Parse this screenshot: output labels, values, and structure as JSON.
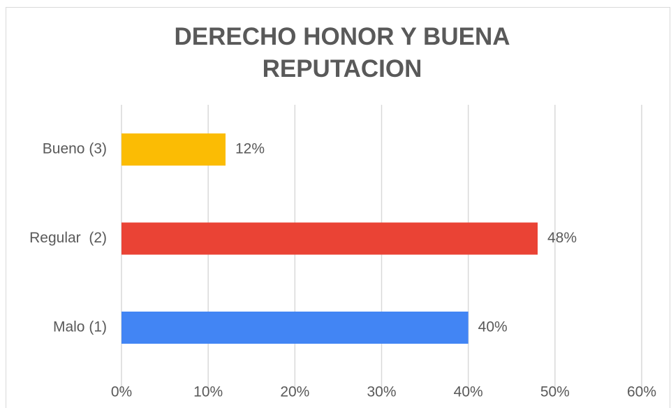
{
  "chart_data": {
    "type": "bar",
    "orientation": "horizontal",
    "title": "DERECHO HONOR Y BUENA REPUTACION",
    "categories": [
      "Bueno (3)",
      "Regular  (2)",
      "Malo (1)"
    ],
    "values": [
      12,
      48,
      40
    ],
    "value_labels": [
      "12%",
      "48%",
      "40%"
    ],
    "colors": [
      "#fbbc04",
      "#ea4335",
      "#4285f4"
    ],
    "xlim": [
      0,
      60
    ],
    "xticks": [
      {
        "value": 0,
        "label": "0%"
      },
      {
        "value": 10,
        "label": "10%"
      },
      {
        "value": 20,
        "label": "20%"
      },
      {
        "value": 30,
        "label": "30%"
      },
      {
        "value": 40,
        "label": "40%"
      },
      {
        "value": 50,
        "label": "50%"
      },
      {
        "value": 60,
        "label": "60%"
      }
    ],
    "grid": true
  }
}
